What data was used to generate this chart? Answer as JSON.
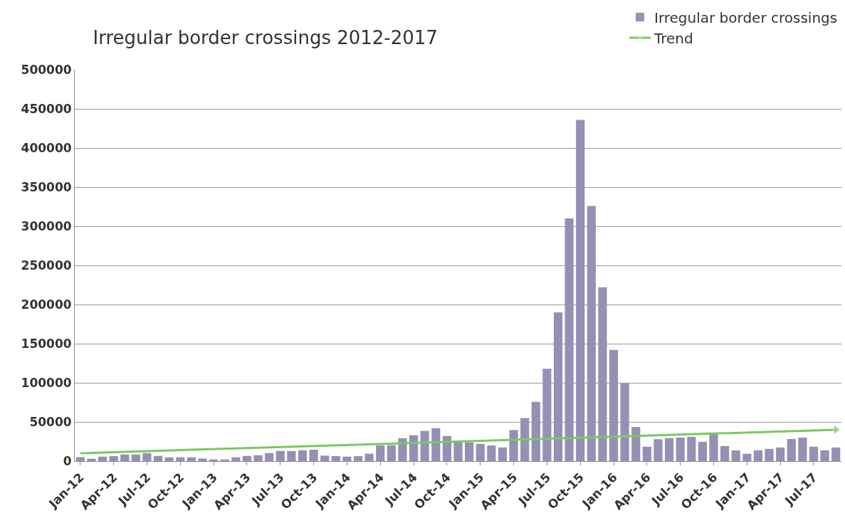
{
  "chart_data": {
    "type": "bar",
    "title": "Irregular border crossings 2012-2017",
    "categories": [
      "Jan-12",
      null,
      null,
      "Apr-12",
      null,
      null,
      "Jul-12",
      null,
      null,
      "Oct-12",
      null,
      null,
      "Jan-13",
      null,
      null,
      "Apr-13",
      null,
      null,
      "Jul-13",
      null,
      null,
      "Oct-13",
      null,
      null,
      "Jan-14",
      null,
      null,
      "Apr-14",
      null,
      null,
      "Jul-14",
      null,
      null,
      "Oct-14",
      null,
      null,
      "Jan-15",
      null,
      null,
      "Apr-15",
      null,
      null,
      "Jul-15",
      null,
      null,
      "Oct-15",
      null,
      null,
      "Jan-16",
      null,
      null,
      "Apr-16",
      null,
      null,
      "Jul-16",
      null,
      null,
      "Oct-16",
      null,
      null,
      "Jan-17",
      null,
      null,
      "Apr-17",
      null,
      null,
      "Jul-17",
      null,
      null
    ],
    "series": [
      {
        "name": "Irregular border crossings",
        "color": "#9590b4",
        "values": [
          5100,
          3000,
          5700,
          6300,
          8400,
          8400,
          10200,
          6600,
          4800,
          4800,
          4800,
          3300,
          2100,
          2100,
          4800,
          6600,
          7500,
          10200,
          12900,
          12900,
          13800,
          14500,
          7000,
          6300,
          5700,
          6300,
          9400,
          20000,
          20300,
          29300,
          33000,
          38500,
          42000,
          32000,
          24800,
          23900,
          22000,
          20000,
          17500,
          39700,
          55000,
          75700,
          118000,
          190000,
          310000,
          436000,
          326000,
          222000,
          142000,
          99000,
          43500,
          18300,
          28000,
          29400,
          30000,
          31000,
          24600,
          36300,
          19200,
          13800,
          9300,
          13800,
          15600,
          17400,
          28200,
          30000,
          18300,
          13800,
          17400
        ]
      },
      {
        "name": "Trend",
        "type": "line",
        "color": "#7dc75f",
        "values": [
          10000,
          null,
          null,
          null,
          null,
          null,
          null,
          null,
          null,
          null,
          null,
          null,
          null,
          null,
          null,
          null,
          null,
          null,
          null,
          null,
          null,
          null,
          null,
          null,
          null,
          null,
          null,
          null,
          null,
          null,
          null,
          null,
          null,
          null,
          null,
          null,
          null,
          null,
          null,
          null,
          null,
          null,
          null,
          null,
          null,
          null,
          null,
          null,
          null,
          null,
          null,
          null,
          null,
          null,
          null,
          null,
          null,
          null,
          null,
          null,
          null,
          null,
          null,
          null,
          null,
          null,
          null,
          null,
          40000
        ]
      }
    ],
    "ylim": [
      0,
      500000
    ],
    "yticks": [
      0,
      50000,
      100000,
      150000,
      200000,
      250000,
      300000,
      350000,
      400000,
      450000,
      500000
    ],
    "grid": "y",
    "legend": "top right"
  }
}
